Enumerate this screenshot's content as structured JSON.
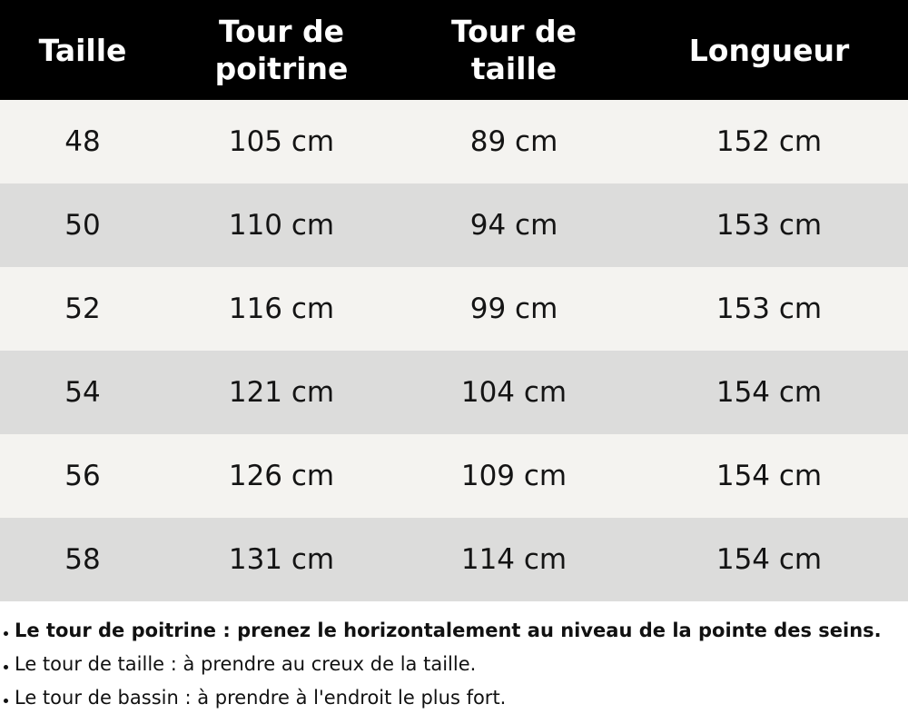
{
  "table": {
    "headers": [
      "Taille",
      "Tour de\npoitrine",
      "Tour de\ntaille",
      "Longueur"
    ],
    "rows": [
      [
        "48",
        "105 cm",
        "89 cm",
        "152 cm"
      ],
      [
        "50",
        "110 cm",
        "94 cm",
        "153 cm"
      ],
      [
        "52",
        "116 cm",
        "99 cm",
        "153 cm"
      ],
      [
        "54",
        "121 cm",
        "104 cm",
        "154 cm"
      ],
      [
        "56",
        "126 cm",
        "109 cm",
        "154 cm"
      ],
      [
        "58",
        "131 cm",
        "114 cm",
        "154 cm"
      ]
    ]
  },
  "notes": [
    "Le tour de poitrine : prenez le horizontalement au niveau de la pointe des seins.",
    "Le tour de taille : à prendre au creux de la taille.",
    "Le tour de bassin : à prendre à l'endroit le plus fort."
  ],
  "colors": {
    "header_bg": "#000000",
    "header_text": "#ffffff",
    "row_light": "#f4f3f0",
    "row_dark": "#dcdcdb"
  }
}
